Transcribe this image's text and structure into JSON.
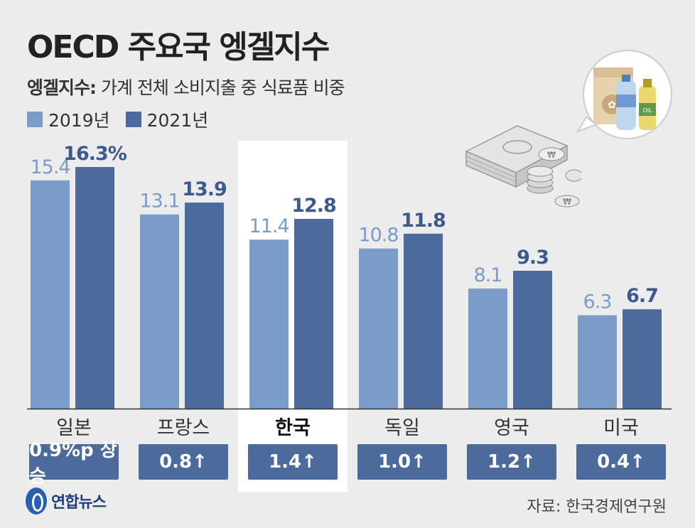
{
  "title": "OECD 주요국 엥겔지수",
  "subtitle_bold": "엥겔지수:",
  "subtitle_text": " 가계 전체 소비지출 중 식료품 비중",
  "legend": [
    {
      "label": "2019년",
      "color": "#7b9cc9"
    },
    {
      "label": "2021년",
      "color": "#4d6a9c"
    }
  ],
  "highlight_country": "한국",
  "source": "자료: 한국경제연구원",
  "logo_text": "연합뉴스",
  "chart_data": {
    "type": "bar",
    "categories": [
      "일본",
      "프랑스",
      "한국",
      "독일",
      "영국",
      "미국"
    ],
    "series": [
      {
        "name": "2019년",
        "values": [
          15.4,
          13.1,
          11.4,
          10.8,
          8.1,
          6.3
        ],
        "labels": [
          "15.4",
          "13.1",
          "11.4",
          "10.8",
          "8.1",
          "6.3"
        ]
      },
      {
        "name": "2021년",
        "values": [
          16.3,
          13.9,
          12.8,
          11.8,
          9.3,
          6.7
        ],
        "labels": [
          "16.3%",
          "13.9",
          "12.8",
          "11.8",
          "9.3",
          "6.7"
        ]
      }
    ],
    "change_labels": [
      "0.9%p 상승",
      "0.8↑",
      "1.4↑",
      "1.0↑",
      "1.2↑",
      "0.4↑"
    ],
    "ylim": [
      0,
      16.3
    ],
    "colors": {
      "2019": "#7b9cc9",
      "2021": "#4d6a9c",
      "label2019": "#7b9cc9",
      "label2021": "#3d5a8c"
    }
  }
}
